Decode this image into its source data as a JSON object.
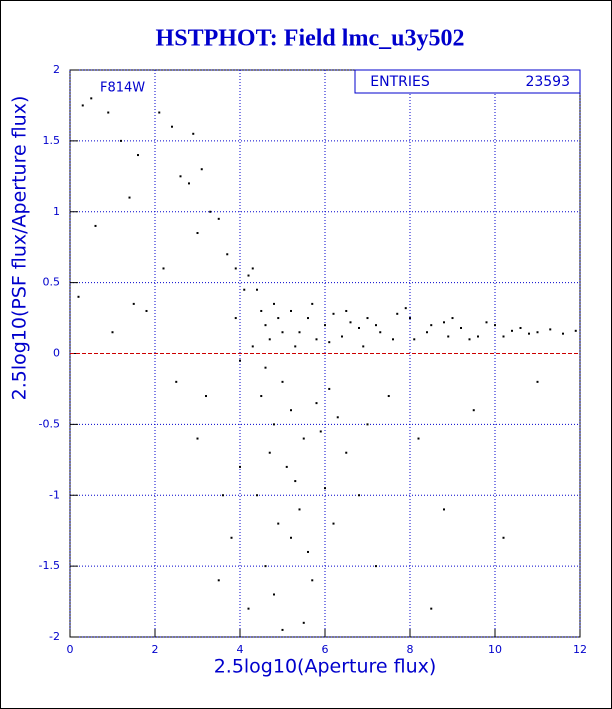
{
  "chart_data": {
    "type": "scatter",
    "title": "HSTPHOT: Field lmc_u3y502",
    "xlabel": "2.5log10(Aperture flux)",
    "ylabel": "2.5log10(PSF flux/Aperture flux)",
    "annotation": "F814W",
    "stats": {
      "label": "ENTRIES",
      "value": 23593
    },
    "xlim": [
      0,
      12
    ],
    "ylim": [
      -2,
      2
    ],
    "xticks": [
      0,
      2,
      4,
      6,
      8,
      10,
      12
    ],
    "yticks": [
      -2,
      -1.5,
      -1,
      -0.5,
      0,
      0.5,
      1,
      1.5,
      2
    ],
    "grid": true,
    "grid_color": "#0000cc",
    "reference_line": {
      "y": 0,
      "color": "#cc0000"
    },
    "color": "#000000",
    "x": [
      0.3,
      0.5,
      0.9,
      1.2,
      1.6,
      2.1,
      2.4,
      2.8,
      3.1,
      3.3,
      0.6,
      1.4,
      2.6,
      3.0,
      3.5,
      3.7,
      3.9,
      0.2,
      1.8,
      2.9,
      4.2,
      4.4,
      4.5,
      4.6,
      4.7,
      4.8,
      4.9,
      5.0,
      4.3,
      4.6,
      5.2,
      5.4,
      5.6,
      5.8,
      6.0,
      6.2,
      6.4,
      6.6,
      6.8,
      7.0,
      5.3,
      5.7,
      6.1,
      6.5,
      6.9,
      7.3,
      7.7,
      8.1,
      8.5,
      8.9,
      7.2,
      7.6,
      8.0,
      8.4,
      8.8,
      9.2,
      9.6,
      10.0,
      10.4,
      10.8,
      9.0,
      9.4,
      9.8,
      10.2,
      10.6,
      11.0,
      11.3,
      11.6,
      11.9,
      7.9,
      4.5,
      4.8,
      5.0,
      5.2,
      5.5,
      5.8,
      6.1,
      4.7,
      5.3,
      5.9,
      4.4,
      4.9,
      5.1,
      5.4,
      5.6,
      6.0,
      6.3,
      4.6,
      5.2,
      5.7,
      4.2,
      4.8,
      5.5,
      6.2,
      3.8,
      3.5,
      4.0,
      5.0,
      6.5,
      7.0,
      7.5,
      8.2,
      8.8,
      9.5,
      10.2,
      11.0,
      7.2,
      8.5,
      6.8,
      3.2,
      2.5,
      1.5,
      3.0,
      3.6,
      2.2,
      1.0,
      3.9,
      4.1,
      4.3,
      4.0
    ],
    "values": [
      1.75,
      1.8,
      1.7,
      1.5,
      1.4,
      1.7,
      1.6,
      1.2,
      1.3,
      1.0,
      0.9,
      1.1,
      1.25,
      0.85,
      0.95,
      0.7,
      0.6,
      0.4,
      0.3,
      1.55,
      0.55,
      0.45,
      0.3,
      0.2,
      0.1,
      0.35,
      0.25,
      0.15,
      0.05,
      -0.1,
      0.3,
      0.15,
      0.25,
      0.1,
      0.2,
      0.28,
      0.12,
      0.22,
      0.18,
      0.25,
      0.05,
      0.35,
      0.08,
      0.3,
      0.05,
      0.15,
      0.28,
      0.1,
      0.2,
      0.12,
      0.2,
      0.1,
      0.25,
      0.15,
      0.22,
      0.18,
      0.12,
      0.2,
      0.16,
      0.14,
      0.25,
      0.1,
      0.22,
      0.12,
      0.18,
      0.15,
      0.17,
      0.14,
      0.16,
      0.32,
      -0.3,
      -0.5,
      -0.2,
      -0.4,
      -0.6,
      -0.35,
      -0.25,
      -0.7,
      -0.9,
      -0.55,
      -1.0,
      -1.2,
      -0.8,
      -1.1,
      -1.4,
      -0.95,
      -0.45,
      -1.5,
      -1.3,
      -1.6,
      -1.8,
      -1.7,
      -1.9,
      -1.2,
      -1.3,
      -1.6,
      -0.8,
      -1.95,
      -0.7,
      -0.5,
      -0.3,
      -0.6,
      -1.1,
      -0.4,
      -1.3,
      -0.2,
      -1.5,
      -1.8,
      -1.0,
      -0.3,
      -0.2,
      0.35,
      -0.6,
      -1.0,
      0.6,
      0.15,
      0.25,
      0.45,
      0.6,
      -0.05
    ]
  }
}
